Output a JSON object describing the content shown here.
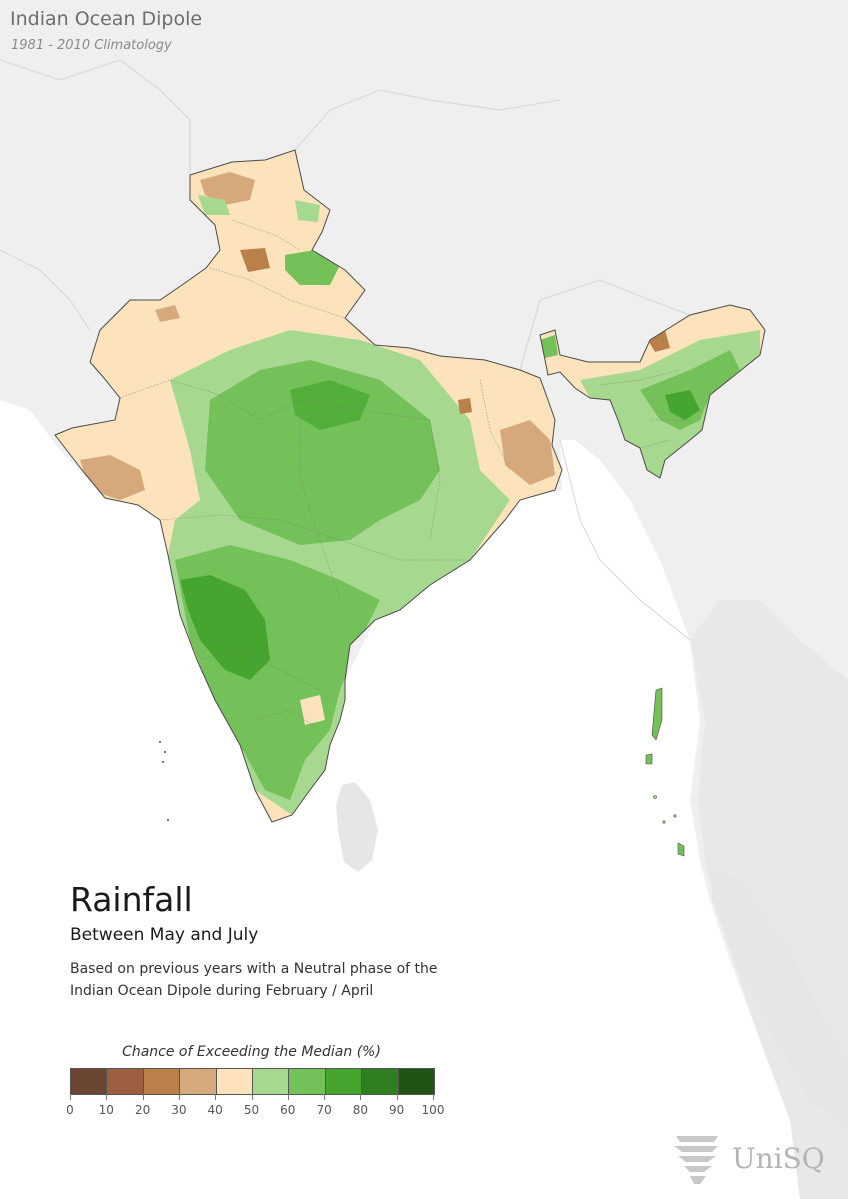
{
  "header": {
    "title": "Indian Ocean Dipole",
    "subtitle": "1981 - 2010 Climatology"
  },
  "info": {
    "title": "Rainfall",
    "period": "Between May and July",
    "description_lines": [
      "Based on previous years with a Neutral phase of the",
      "Indian Ocean Dipole during February / April"
    ]
  },
  "legend": {
    "title": "Chance of Exceeding the Median (%)",
    "ticks": [
      "0",
      "10",
      "20",
      "30",
      "40",
      "50",
      "60",
      "70",
      "80",
      "90",
      "100"
    ],
    "colors": [
      "#6b4733",
      "#9c5f3f",
      "#b98049",
      "#d6a97c",
      "#fde3bb",
      "#a6d890",
      "#74c159",
      "#46a52e",
      "#2f7e20",
      "#1f5414"
    ]
  },
  "logo": {
    "text": "UniSQ"
  },
  "map_colors": {
    "land_background": "#e6e6e6",
    "land_light": "#f2f2f2",
    "ocean": "#ffffff",
    "border": "#4a4a4a"
  }
}
